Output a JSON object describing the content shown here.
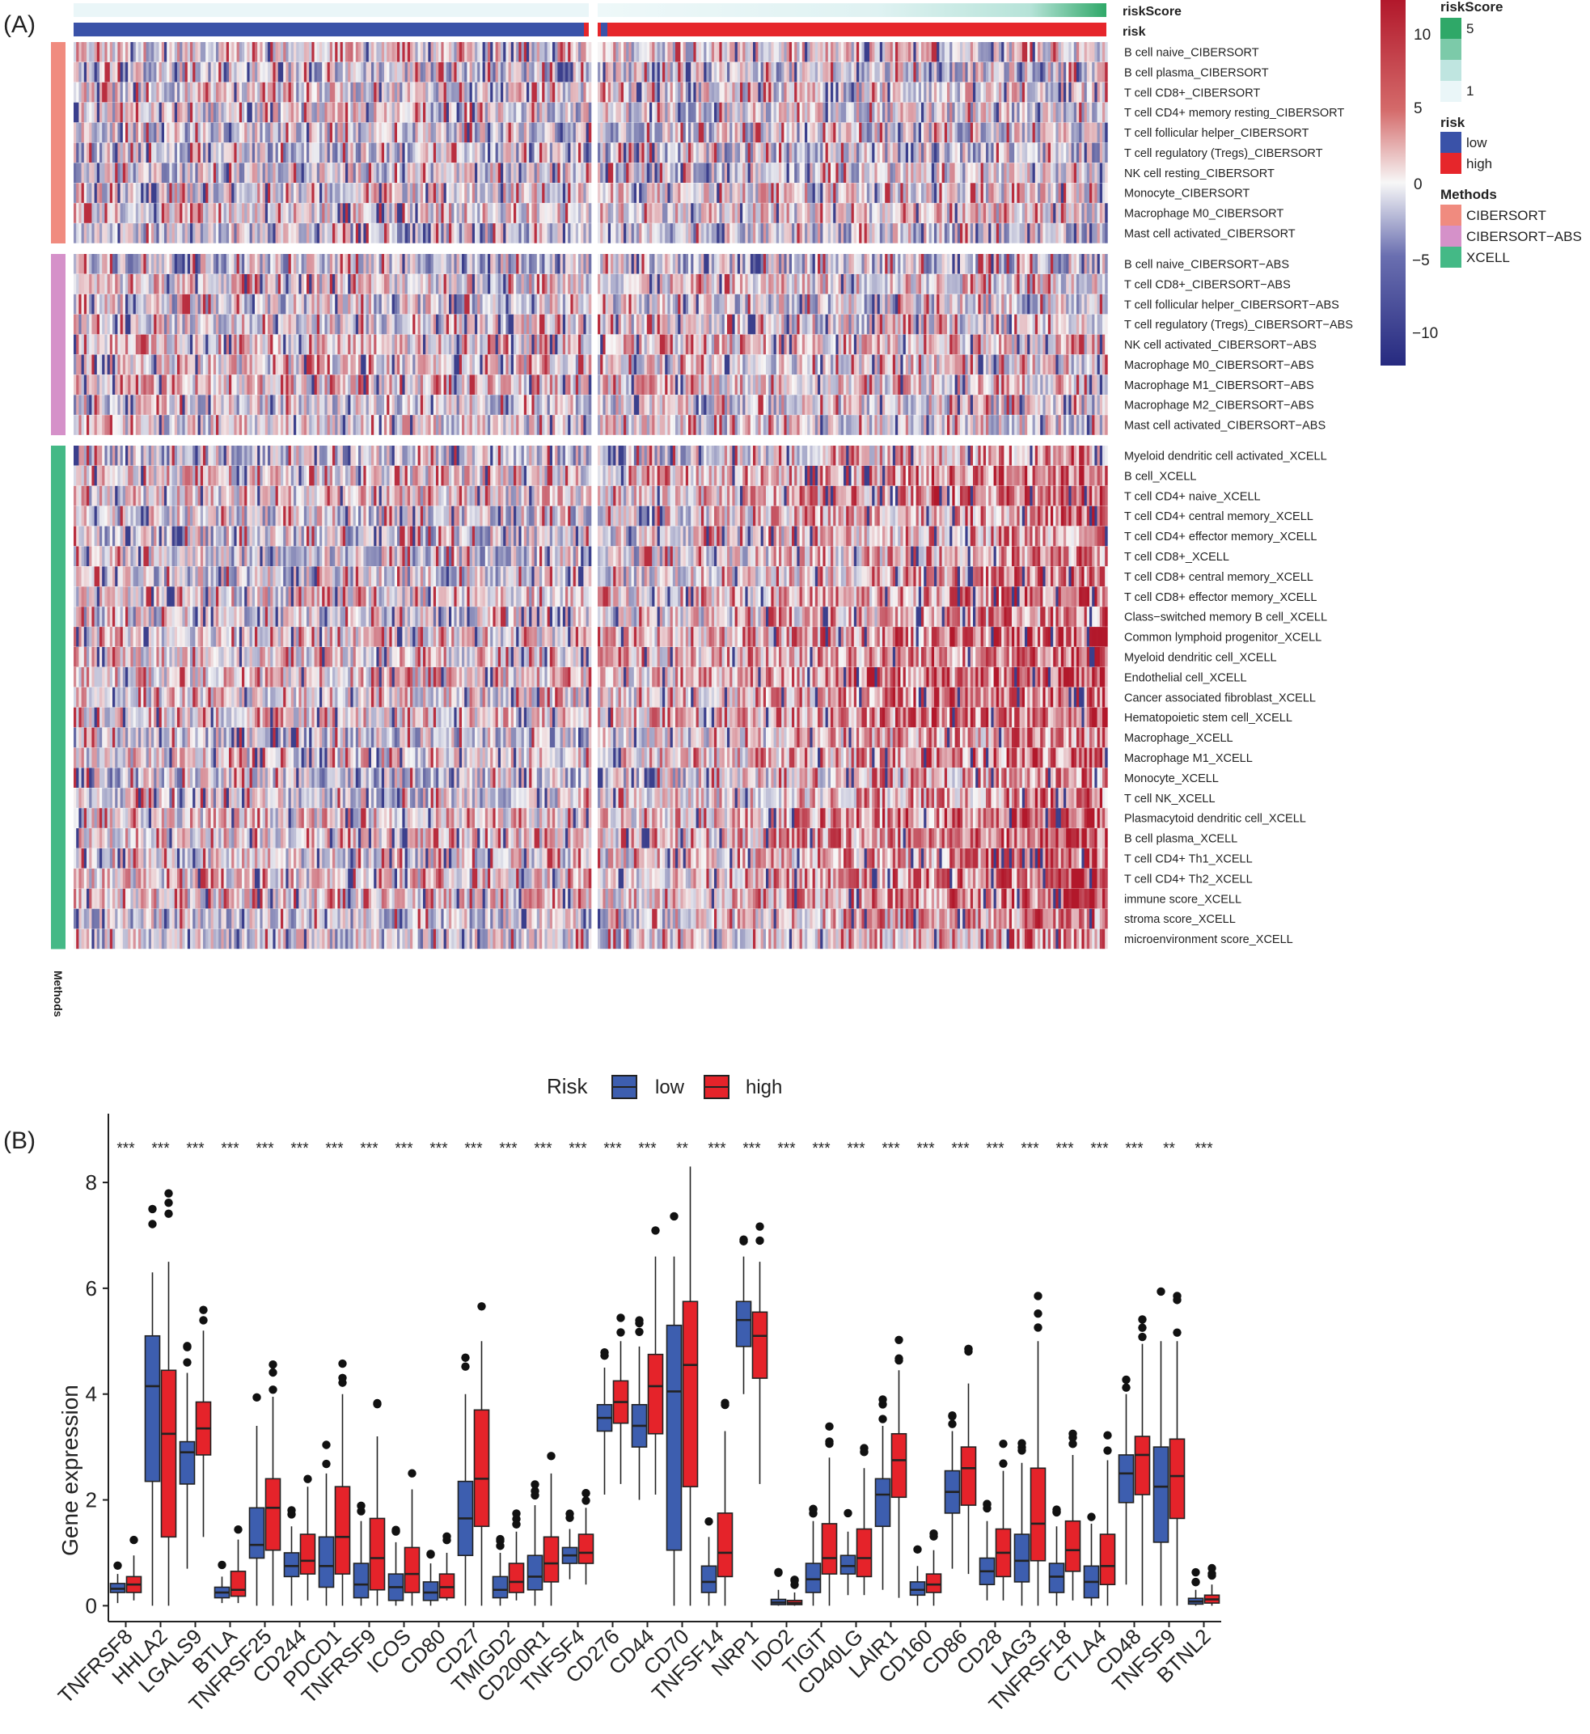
{
  "chart_data": [
    {
      "panel": "(A)",
      "type": "heatmap",
      "annotation_bars": {
        "riskScore_label": "riskScore",
        "risk_label": "risk",
        "methods_label": "Methods"
      },
      "split_groups": [
        "low",
        "high"
      ],
      "color_scale": {
        "min": -10,
        "max": 10,
        "ticks": [
          10,
          5,
          0,
          -5,
          -10
        ],
        "low_color": "#2b2f86",
        "mid_color": "#f2f2f2",
        "high_color": "#b2182b"
      },
      "legend": {
        "riskScore": {
          "title": "riskScore",
          "ticks": [
            "5",
            "1"
          ]
        },
        "risk": {
          "title": "risk",
          "levels": [
            {
              "label": "low",
              "color": "#3a52a8"
            },
            {
              "label": "high",
              "color": "#e6262b"
            }
          ]
        },
        "methods": {
          "title": "Methods",
          "levels": [
            {
              "label": "CIBERSORT",
              "color": "#f08b7f"
            },
            {
              "label": "CIBERSORT−ABS",
              "color": "#d591c9"
            },
            {
              "label": "XCELL",
              "color": "#44b986"
            }
          ]
        }
      },
      "row_groups": [
        {
          "method": "CIBERSORT",
          "rows": [
            "B cell naive_CIBERSORT",
            "B cell plasma_CIBERSORT",
            "T cell CD8+_CIBERSORT",
            "T cell CD4+ memory resting_CIBERSORT",
            "T cell follicular helper_CIBERSORT",
            "T cell regulatory (Tregs)_CIBERSORT",
            "NK cell resting_CIBERSORT",
            "Monocyte_CIBERSORT",
            "Macrophage M0_CIBERSORT",
            "Mast cell activated_CIBERSORT"
          ]
        },
        {
          "method": "CIBERSORT−ABS",
          "rows": [
            "B cell naive_CIBERSORT−ABS",
            "T cell CD8+_CIBERSORT−ABS",
            "T cell follicular helper_CIBERSORT−ABS",
            "T cell regulatory (Tregs)_CIBERSORT−ABS",
            "NK cell activated_CIBERSORT−ABS",
            "Macrophage M0_CIBERSORT−ABS",
            "Macrophage M1_CIBERSORT−ABS",
            "Macrophage M2_CIBERSORT−ABS",
            "Mast cell activated_CIBERSORT−ABS"
          ]
        },
        {
          "method": "XCELL",
          "rows": [
            "Myeloid dendritic cell activated_XCELL",
            "B cell_XCELL",
            "T cell CD4+ naive_XCELL",
            "T cell CD4+ central memory_XCELL",
            "T cell CD4+ effector memory_XCELL",
            "T cell CD8+_XCELL",
            "T cell CD8+ central memory_XCELL",
            "T cell CD8+ effector memory_XCELL",
            "Class−switched memory B cell_XCELL",
            "Common lymphoid progenitor_XCELL",
            "Myeloid dendritic cell_XCELL",
            "Endothelial cell_XCELL",
            "Cancer associated fibroblast_XCELL",
            "Hematopoietic stem cell_XCELL",
            "Macrophage_XCELL",
            "Macrophage M1_XCELL",
            "Monocyte_XCELL",
            "T cell NK_XCELL",
            "Plasmacytoid dendritic cell_XCELL",
            "B cell plasma_XCELL",
            "T cell CD4+ Th1_XCELL",
            "T cell CD4+ Th2_XCELL",
            "immune score_XCELL",
            "stroma score_XCELL",
            "microenvironment score_XCELL"
          ]
        }
      ]
    },
    {
      "panel": "(B)",
      "type": "box",
      "ylabel": "Gene expression",
      "ylim": [
        -0.3,
        9.3
      ],
      "yticks": [
        0,
        2,
        4,
        6,
        8
      ],
      "legend": {
        "title": "Risk",
        "entries": [
          {
            "label": "low",
            "color": "#3d5eaf"
          },
          {
            "label": "high",
            "color": "#e5232a"
          }
        ]
      },
      "categories": [
        "TNFRSF8",
        "HHLA2",
        "LGALS9",
        "BTLA",
        "TNFRSF25",
        "CD244",
        "PDCD1",
        "TNFRSF9",
        "ICOS",
        "CD80",
        "CD27",
        "TMIGD2",
        "CD200R1",
        "TNFSF4",
        "CD276",
        "CD44",
        "CD70",
        "TNFSF14",
        "NRP1",
        "IDO2",
        "TIGIT",
        "CD40LG",
        "LAIR1",
        "CD160",
        "CD86",
        "CD28",
        "LAG3",
        "TNFRSF18",
        "CTLA4",
        "CD48",
        "TNFSF9",
        "BTNL2"
      ],
      "significance": [
        "***",
        "***",
        "***",
        "***",
        "***",
        "***",
        "***",
        "***",
        "***",
        "***",
        "***",
        "***",
        "***",
        "***",
        "***",
        "***",
        "**",
        "***",
        "***",
        "***",
        "***",
        "***",
        "***",
        "***",
        "***",
        "***",
        "***",
        "***",
        "***",
        "***",
        "**",
        "***"
      ],
      "series": [
        {
          "name": "low",
          "boxes": [
            [
              0.05,
              0.25,
              0.32,
              0.42,
              0.6
            ],
            [
              0,
              2.35,
              4.15,
              5.1,
              6.3
            ],
            [
              0.7,
              2.3,
              2.9,
              3.1,
              4.4
            ],
            [
              0.05,
              0.15,
              0.25,
              0.35,
              0.55
            ],
            [
              0,
              0.9,
              1.15,
              1.85,
              3.4
            ],
            [
              0,
              0.55,
              0.75,
              1.0,
              1.5
            ],
            [
              0,
              0.35,
              0.75,
              1.3,
              2.5
            ],
            [
              0,
              0.15,
              0.4,
              0.8,
              1.6
            ],
            [
              0,
              0.1,
              0.35,
              0.6,
              1.2
            ],
            [
              0,
              0.1,
              0.25,
              0.45,
              0.8
            ],
            [
              0,
              0.95,
              1.65,
              2.35,
              4.0
            ],
            [
              0,
              0.15,
              0.3,
              0.55,
              1.0
            ],
            [
              0,
              0.3,
              0.55,
              0.95,
              1.9
            ],
            [
              0.5,
              0.8,
              0.95,
              1.1,
              1.45
            ],
            [
              2.1,
              3.3,
              3.55,
              3.8,
              4.5
            ],
            [
              2.0,
              3.0,
              3.4,
              3.8,
              4.9
            ],
            [
              0,
              1.05,
              4.05,
              5.3,
              6.6
            ],
            [
              0,
              0.25,
              0.45,
              0.75,
              1.3
            ],
            [
              4.0,
              4.9,
              5.4,
              5.75,
              6.6
            ],
            [
              0,
              0.02,
              0.06,
              0.12,
              0.3
            ],
            [
              0,
              0.25,
              0.5,
              0.8,
              1.6
            ],
            [
              0.2,
              0.6,
              0.75,
              0.95,
              1.4
            ],
            [
              0.3,
              1.5,
              2.1,
              2.4,
              3.4
            ],
            [
              0,
              0.2,
              0.3,
              0.45,
              0.75
            ],
            [
              0.7,
              1.75,
              2.15,
              2.55,
              3.3
            ],
            [
              0.1,
              0.4,
              0.65,
              0.9,
              1.6
            ],
            [
              0,
              0.45,
              0.85,
              1.35,
              2.7
            ],
            [
              0,
              0.25,
              0.55,
              0.8,
              1.5
            ],
            [
              0,
              0.15,
              0.45,
              0.75,
              1.55
            ],
            [
              0.4,
              1.95,
              2.5,
              2.85,
              4.0
            ],
            [
              0,
              1.2,
              2.25,
              3.0,
              5.0
            ],
            [
              0,
              0.03,
              0.08,
              0.14,
              0.3
            ]
          ]
        },
        {
          "name": "high",
          "boxes": [
            [
              0.1,
              0.25,
              0.4,
              0.55,
              0.95
            ],
            [
              0,
              1.3,
              3.25,
              4.45,
              6.5
            ],
            [
              1.3,
              2.85,
              3.35,
              3.85,
              5.2
            ],
            [
              0.05,
              0.18,
              0.3,
              0.65,
              1.25
            ],
            [
              0,
              1.05,
              1.85,
              2.4,
              3.95
            ],
            [
              0.1,
              0.6,
              0.85,
              1.35,
              2.25
            ],
            [
              0,
              0.6,
              1.3,
              2.25,
              4.0
            ],
            [
              0,
              0.3,
              0.9,
              1.65,
              3.2
            ],
            [
              0,
              0.25,
              0.6,
              1.1,
              2.2
            ],
            [
              0.1,
              0.15,
              0.35,
              0.6,
              1.0
            ],
            [
              0,
              1.5,
              2.4,
              3.7,
              5.0
            ],
            [
              0.1,
              0.25,
              0.45,
              0.8,
              1.4
            ],
            [
              0,
              0.45,
              0.8,
              1.3,
              2.5
            ],
            [
              0.4,
              0.8,
              1.0,
              1.35,
              1.85
            ],
            [
              2.3,
              3.45,
              3.85,
              4.25,
              5.0
            ],
            [
              2.1,
              3.25,
              4.15,
              4.75,
              6.6
            ],
            [
              0,
              2.25,
              4.55,
              5.75,
              8.3
            ],
            [
              0,
              0.55,
              1.0,
              1.75,
              3.3
            ],
            [
              2.3,
              4.3,
              5.1,
              5.55,
              6.5
            ],
            [
              0,
              0.02,
              0.05,
              0.1,
              0.25
            ],
            [
              0,
              0.6,
              0.9,
              1.55,
              2.8
            ],
            [
              0.2,
              0.55,
              0.9,
              1.45,
              2.6
            ],
            [
              0.15,
              2.05,
              2.75,
              3.25,
              4.45
            ],
            [
              0,
              0.25,
              0.4,
              0.6,
              1.05
            ],
            [
              0.6,
              1.9,
              2.6,
              3.0,
              4.2
            ],
            [
              0.1,
              0.55,
              1.0,
              1.45,
              2.55
            ],
            [
              0,
              0.85,
              1.55,
              2.6,
              5.0
            ],
            [
              0.1,
              0.65,
              1.05,
              1.6,
              2.85
            ],
            [
              0,
              0.4,
              0.75,
              1.35,
              2.75
            ],
            [
              0,
              2.1,
              2.85,
              3.2,
              4.95
            ],
            [
              0,
              1.65,
              2.45,
              3.15,
              5.0
            ],
            [
              0,
              0.05,
              0.12,
              0.2,
              0.4
            ]
          ]
        }
      ]
    }
  ]
}
